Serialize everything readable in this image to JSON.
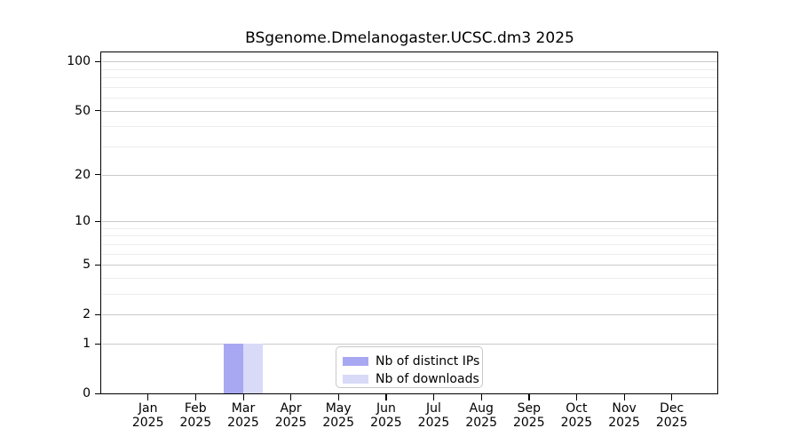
{
  "chart_data": {
    "type": "bar",
    "title": "BSgenome.Dmelanogaster.UCSC.dm3 2025",
    "xlabel": "",
    "ylabel": "",
    "categories": [
      "Jan",
      "Feb",
      "Mar",
      "Apr",
      "May",
      "Jun",
      "Jul",
      "Aug",
      "Sep",
      "Oct",
      "Nov",
      "Dec"
    ],
    "x_tick_year_line": "2025",
    "series": [
      {
        "name": "Nb of distinct IPs",
        "color": "#a8a8f2",
        "values": [
          0,
          0,
          1,
          0,
          0,
          0,
          0,
          0,
          0,
          0,
          0,
          0
        ]
      },
      {
        "name": "Nb of downloads",
        "color": "#d9d9f8",
        "values": [
          0,
          0,
          1,
          0,
          0,
          0,
          0,
          0,
          0,
          0,
          0,
          0
        ]
      }
    ],
    "yscale": "log1p",
    "ylim": [
      0,
      100
    ],
    "yticks": [
      0,
      1,
      2,
      5,
      10,
      20,
      50,
      100
    ],
    "minor_yticks": [
      3,
      4,
      6,
      7,
      8,
      9,
      30,
      40,
      60,
      70,
      80,
      90
    ],
    "grid": "horizontal",
    "legend_position": "inside-bottom-center",
    "colors": {
      "major_grid": "#c9c9c9",
      "minor_grid": "#ededed",
      "spine": "#000000",
      "background": "#ffffff"
    }
  }
}
